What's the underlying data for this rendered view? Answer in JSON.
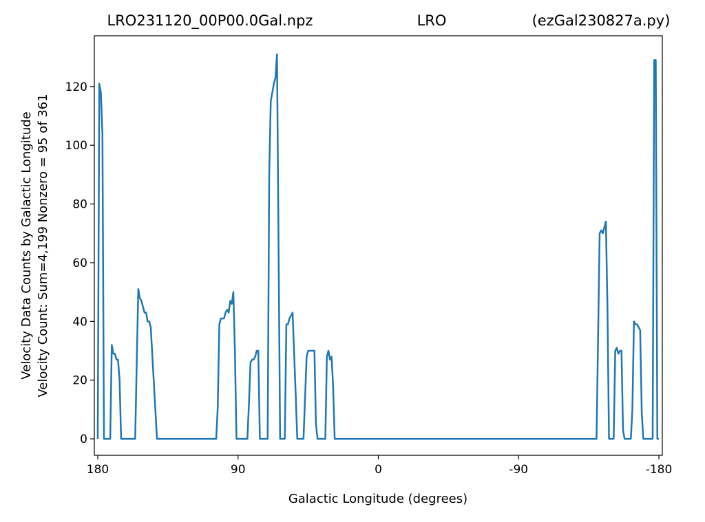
{
  "chart_data": {
    "type": "line",
    "title": [
      "LRO231120_00P00.0Gal.npz",
      "LRO",
      "(ezGal230827a.py)"
    ],
    "x_label": "Galactic Longitude (degrees)",
    "y_label": [
      "Velocity Data Counts by Galactic Longitude",
      "Velocity Count: Sum=4,199 Nonzero = 95 of 361"
    ],
    "x": [
      180,
      179,
      178,
      177,
      176,
      172,
      171,
      170,
      169,
      168,
      167,
      166,
      165,
      156,
      154,
      153,
      152,
      151,
      150,
      149,
      148,
      147,
      146,
      142,
      104,
      103,
      102,
      101,
      100,
      99,
      98,
      97,
      96,
      95,
      94,
      93,
      92,
      91,
      84,
      83,
      82,
      81,
      80,
      79,
      78,
      77,
      76,
      71,
      70,
      69,
      68,
      67,
      66,
      65,
      63,
      60,
      59,
      58,
      57,
      56,
      55,
      53,
      52,
      48,
      46,
      45,
      44,
      43,
      42,
      41,
      40,
      39,
      34,
      33,
      32,
      31,
      30,
      29,
      28,
      -140,
      -142,
      -143,
      -144,
      -145,
      -146,
      -147,
      -148,
      -151,
      -152,
      -153,
      -154,
      -155,
      -156,
      -157,
      -158,
      -162,
      -163,
      -164,
      -165,
      -166,
      -167,
      -168,
      -169,
      -170,
      -176,
      -177,
      -178,
      -179,
      -180
    ],
    "series": [
      {
        "name": "Velocity Count",
        "color": "#1f77b4",
        "values": [
          0,
          121,
          118,
          104,
          0,
          0,
          32,
          29,
          29,
          27,
          27,
          20,
          0,
          0,
          51,
          48,
          47,
          45,
          43,
          43,
          40,
          40,
          38,
          0,
          0,
          11,
          39,
          41,
          41,
          41,
          43,
          44,
          43,
          47,
          46,
          50,
          30,
          0,
          0,
          12,
          26,
          27,
          27,
          28,
          30,
          30,
          0,
          0,
          90,
          115,
          118,
          121,
          123,
          131,
          0,
          0,
          39,
          39,
          41,
          42,
          43,
          15,
          0,
          0,
          28,
          30,
          30,
          30,
          30,
          30,
          5,
          0,
          0,
          28,
          30,
          27,
          28,
          18,
          0,
          0,
          70,
          71,
          70,
          72,
          74,
          45,
          0,
          0,
          30,
          31,
          29,
          30,
          30,
          3,
          0,
          0,
          10,
          40,
          39,
          39,
          38,
          37,
          9,
          0,
          0,
          129,
          129,
          0,
          0
        ]
      }
    ],
    "xlim": [
      182.2,
      -182.2
    ],
    "ylim": [
      -5.6,
      137.3
    ],
    "xticks": [
      180,
      90,
      0,
      -90,
      -180
    ],
    "yticks": [
      0,
      20,
      40,
      60,
      80,
      100,
      120
    ]
  }
}
